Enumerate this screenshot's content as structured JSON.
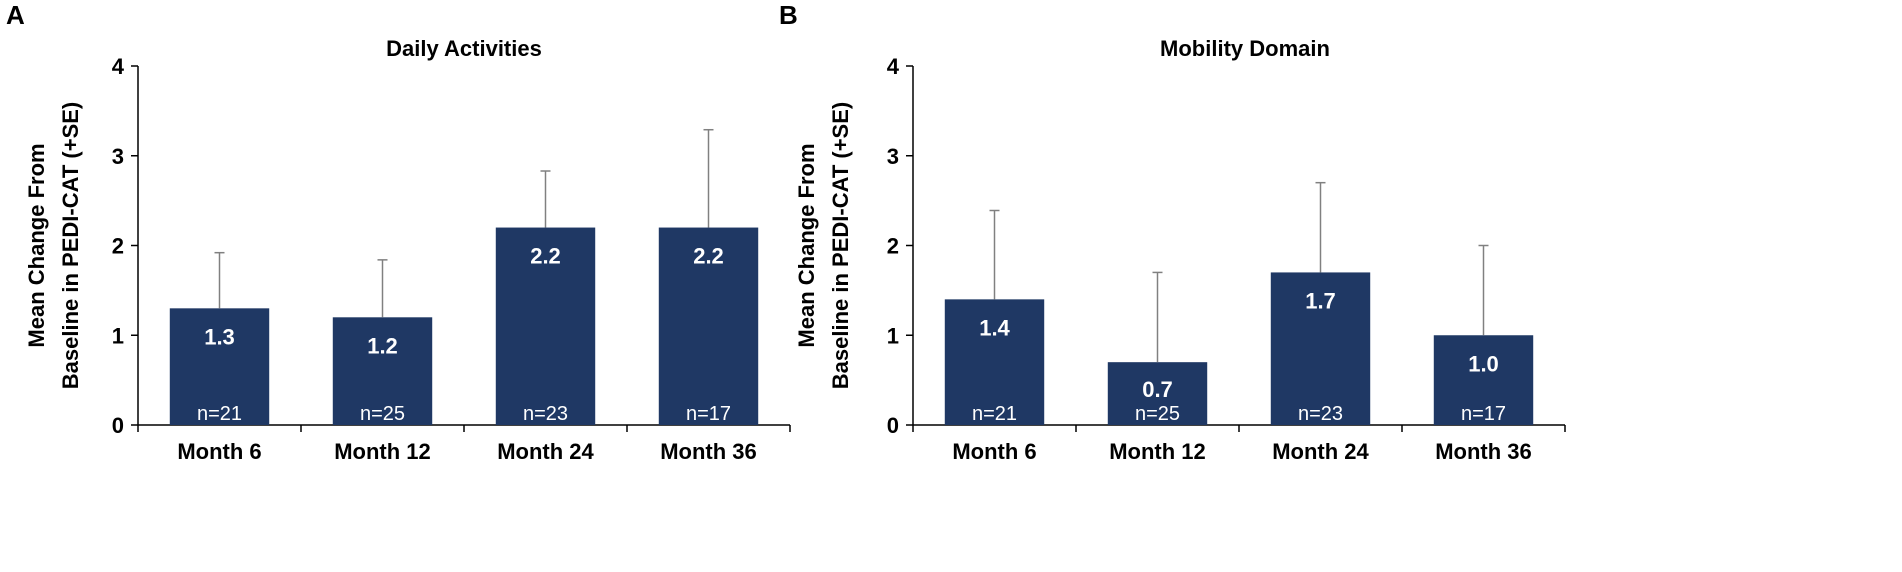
{
  "chart_data": [
    {
      "type": "bar",
      "panel_label": "A",
      "title": "Daily Activities",
      "ylabel_line1": "Mean Change From",
      "ylabel_line2": "Baseline in PEDI-CAT (+SE)",
      "xlabel": "",
      "ylim": [
        0,
        4
      ],
      "yticks": [
        "0",
        "1",
        "2",
        "3",
        "4"
      ],
      "categories": [
        "Month 6",
        "Month 12",
        "Month 24",
        "Month 36"
      ],
      "values": [
        1.3,
        1.2,
        2.2,
        2.2
      ],
      "value_labels": [
        "1.3",
        "1.2",
        "2.2",
        "2.2"
      ],
      "error_upper": [
        1.92,
        1.84,
        2.83,
        3.29
      ],
      "n_labels": [
        "n=21",
        "n=25",
        "n=23",
        "n=17"
      ]
    },
    {
      "type": "bar",
      "panel_label": "B",
      "title": "Mobility Domain",
      "ylabel_line1": "Mean Change From",
      "ylabel_line2": "Baseline in PEDI-CAT (+SE)",
      "xlabel": "",
      "ylim": [
        0,
        4
      ],
      "yticks": [
        "0",
        "1",
        "2",
        "3",
        "4"
      ],
      "categories": [
        "Month 6",
        "Month 12",
        "Month 24",
        "Month 36"
      ],
      "values": [
        1.4,
        0.7,
        1.7,
        1.0
      ],
      "value_labels": [
        "1.4",
        "0.7",
        "1.7",
        "1.0"
      ],
      "error_upper": [
        2.39,
        1.7,
        2.7,
        2.0
      ],
      "n_labels": [
        "n=21",
        "n=25",
        "n=23",
        "n=17"
      ]
    }
  ],
  "colors": {
    "bar": "#1f3864",
    "axis": "#000000",
    "error_bar": "#808080",
    "bar_text": "#ffffff"
  }
}
